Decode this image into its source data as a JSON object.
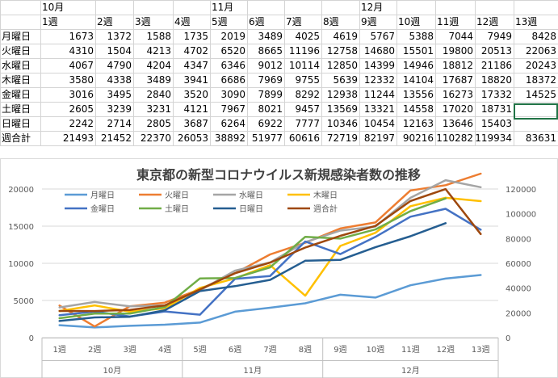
{
  "sheet": {
    "months_row": [
      {
        "col": 1,
        "text": "10月"
      },
      {
        "col": 5,
        "text": "11月"
      },
      {
        "col": 9,
        "text": "12月"
      }
    ],
    "weeks": [
      "1週",
      "2週",
      "3週",
      "4週",
      "5週",
      "6週",
      "7週",
      "8週",
      "9週",
      "10週",
      "11週",
      "12週",
      "13週"
    ],
    "rows": [
      {
        "label": "月曜日",
        "values": [
          "1673",
          "1372",
          "1588",
          "1735",
          "2019",
          "3489",
          "4025",
          "4619",
          "5767",
          "5388",
          "7044",
          "7949",
          "8428"
        ]
      },
      {
        "label": "火曜日",
        "values": [
          "4310",
          "1504",
          "4213",
          "4702",
          "6520",
          "8665",
          "11196",
          "12758",
          "14680",
          "15501",
          "19800",
          "20513",
          "22063"
        ]
      },
      {
        "label": "水曜日",
        "values": [
          "4067",
          "4790",
          "4204",
          "4347",
          "6346",
          "9012",
          "10114",
          "12850",
          "14399",
          "14946",
          "18812",
          "21186",
          "20243"
        ]
      },
      {
        "label": "木曜日",
        "values": [
          "3580",
          "4338",
          "3489",
          "3941",
          "6686",
          "7969",
          "9755",
          "5639",
          "12332",
          "14104",
          "17687",
          "18820",
          "18372"
        ]
      },
      {
        "label": "金曜日",
        "values": [
          "3016",
          "3495",
          "2840",
          "3520",
          "3090",
          "7899",
          "8292",
          "12938",
          "11244",
          "13556",
          "16273",
          "17332",
          "14525"
        ]
      },
      {
        "label": "土曜日",
        "values": [
          "2605",
          "3239",
          "3231",
          "4121",
          "7967",
          "8021",
          "9457",
          "13569",
          "13321",
          "14558",
          "17020",
          "18731",
          ""
        ]
      },
      {
        "label": "日曜日",
        "values": [
          "2242",
          "2714",
          "2805",
          "3687",
          "6264",
          "6922",
          "7777",
          "10346",
          "10454",
          "12163",
          "13646",
          "15403",
          ""
        ]
      },
      {
        "label": "週合計",
        "values": [
          "21493",
          "21452",
          "22370",
          "26053",
          "38892",
          "51977",
          "60616",
          "72719",
          "82197",
          "90216",
          "110282",
          "119934",
          "83631"
        ]
      }
    ]
  },
  "chart_data": {
    "type": "line",
    "title": "東京都の新型コロナウイルス新規感染者数の推移",
    "categories": [
      "1週",
      "2週",
      "3週",
      "4週",
      "5週",
      "6週",
      "7週",
      "8週",
      "9週",
      "10週",
      "11週",
      "12週",
      "13週"
    ],
    "month_groups": [
      {
        "label": "10月",
        "start": 0,
        "end": 3
      },
      {
        "label": "11月",
        "start": 4,
        "end": 7
      },
      {
        "label": "12月",
        "start": 8,
        "end": 12
      }
    ],
    "left_axis": {
      "min": 0,
      "max": 20000,
      "ticks": [
        0,
        5000,
        10000,
        15000,
        20000
      ]
    },
    "right_axis": {
      "min": 0,
      "max": 120000,
      "ticks": [
        0,
        20000,
        40000,
        60000,
        80000,
        100000,
        120000
      ]
    },
    "series": [
      {
        "name": "月曜日",
        "color": "#5b9bd5",
        "axis": "left",
        "values": [
          1673,
          1372,
          1588,
          1735,
          2019,
          3489,
          4025,
          4619,
          5767,
          5388,
          7044,
          7949,
          8428
        ]
      },
      {
        "name": "火曜日",
        "color": "#ed7d31",
        "axis": "left",
        "values": [
          4310,
          1504,
          4213,
          4702,
          6520,
          8665,
          11196,
          12758,
          14680,
          15501,
          19800,
          20513,
          22063
        ]
      },
      {
        "name": "水曜日",
        "color": "#a5a5a5",
        "axis": "left",
        "values": [
          4067,
          4790,
          4204,
          4347,
          6346,
          9012,
          10114,
          12850,
          14399,
          14946,
          18812,
          21186,
          20243
        ]
      },
      {
        "name": "木曜日",
        "color": "#ffc000",
        "axis": "left",
        "values": [
          3580,
          4338,
          3489,
          3941,
          6686,
          7969,
          9755,
          5639,
          12332,
          14104,
          17687,
          18820,
          18372
        ]
      },
      {
        "name": "金曜日",
        "color": "#4472c4",
        "axis": "left",
        "values": [
          3016,
          3495,
          2840,
          3520,
          3090,
          7899,
          8292,
          12938,
          11244,
          13556,
          16273,
          17332,
          14525
        ]
      },
      {
        "name": "土曜日",
        "color": "#70ad47",
        "axis": "left",
        "values": [
          2605,
          3239,
          3231,
          4121,
          7967,
          8021,
          9457,
          13569,
          13321,
          14558,
          17020,
          18731,
          null
        ]
      },
      {
        "name": "日曜日",
        "color": "#255e91",
        "axis": "left",
        "values": [
          2242,
          2714,
          2805,
          3687,
          6264,
          6922,
          7777,
          10346,
          10454,
          12163,
          13646,
          15403,
          null
        ]
      },
      {
        "name": "週合計",
        "color": "#9e480e",
        "axis": "right",
        "values": [
          21493,
          21452,
          22370,
          26053,
          38892,
          51977,
          60616,
          72719,
          82197,
          90216,
          110282,
          119934,
          83631
        ]
      }
    ]
  }
}
